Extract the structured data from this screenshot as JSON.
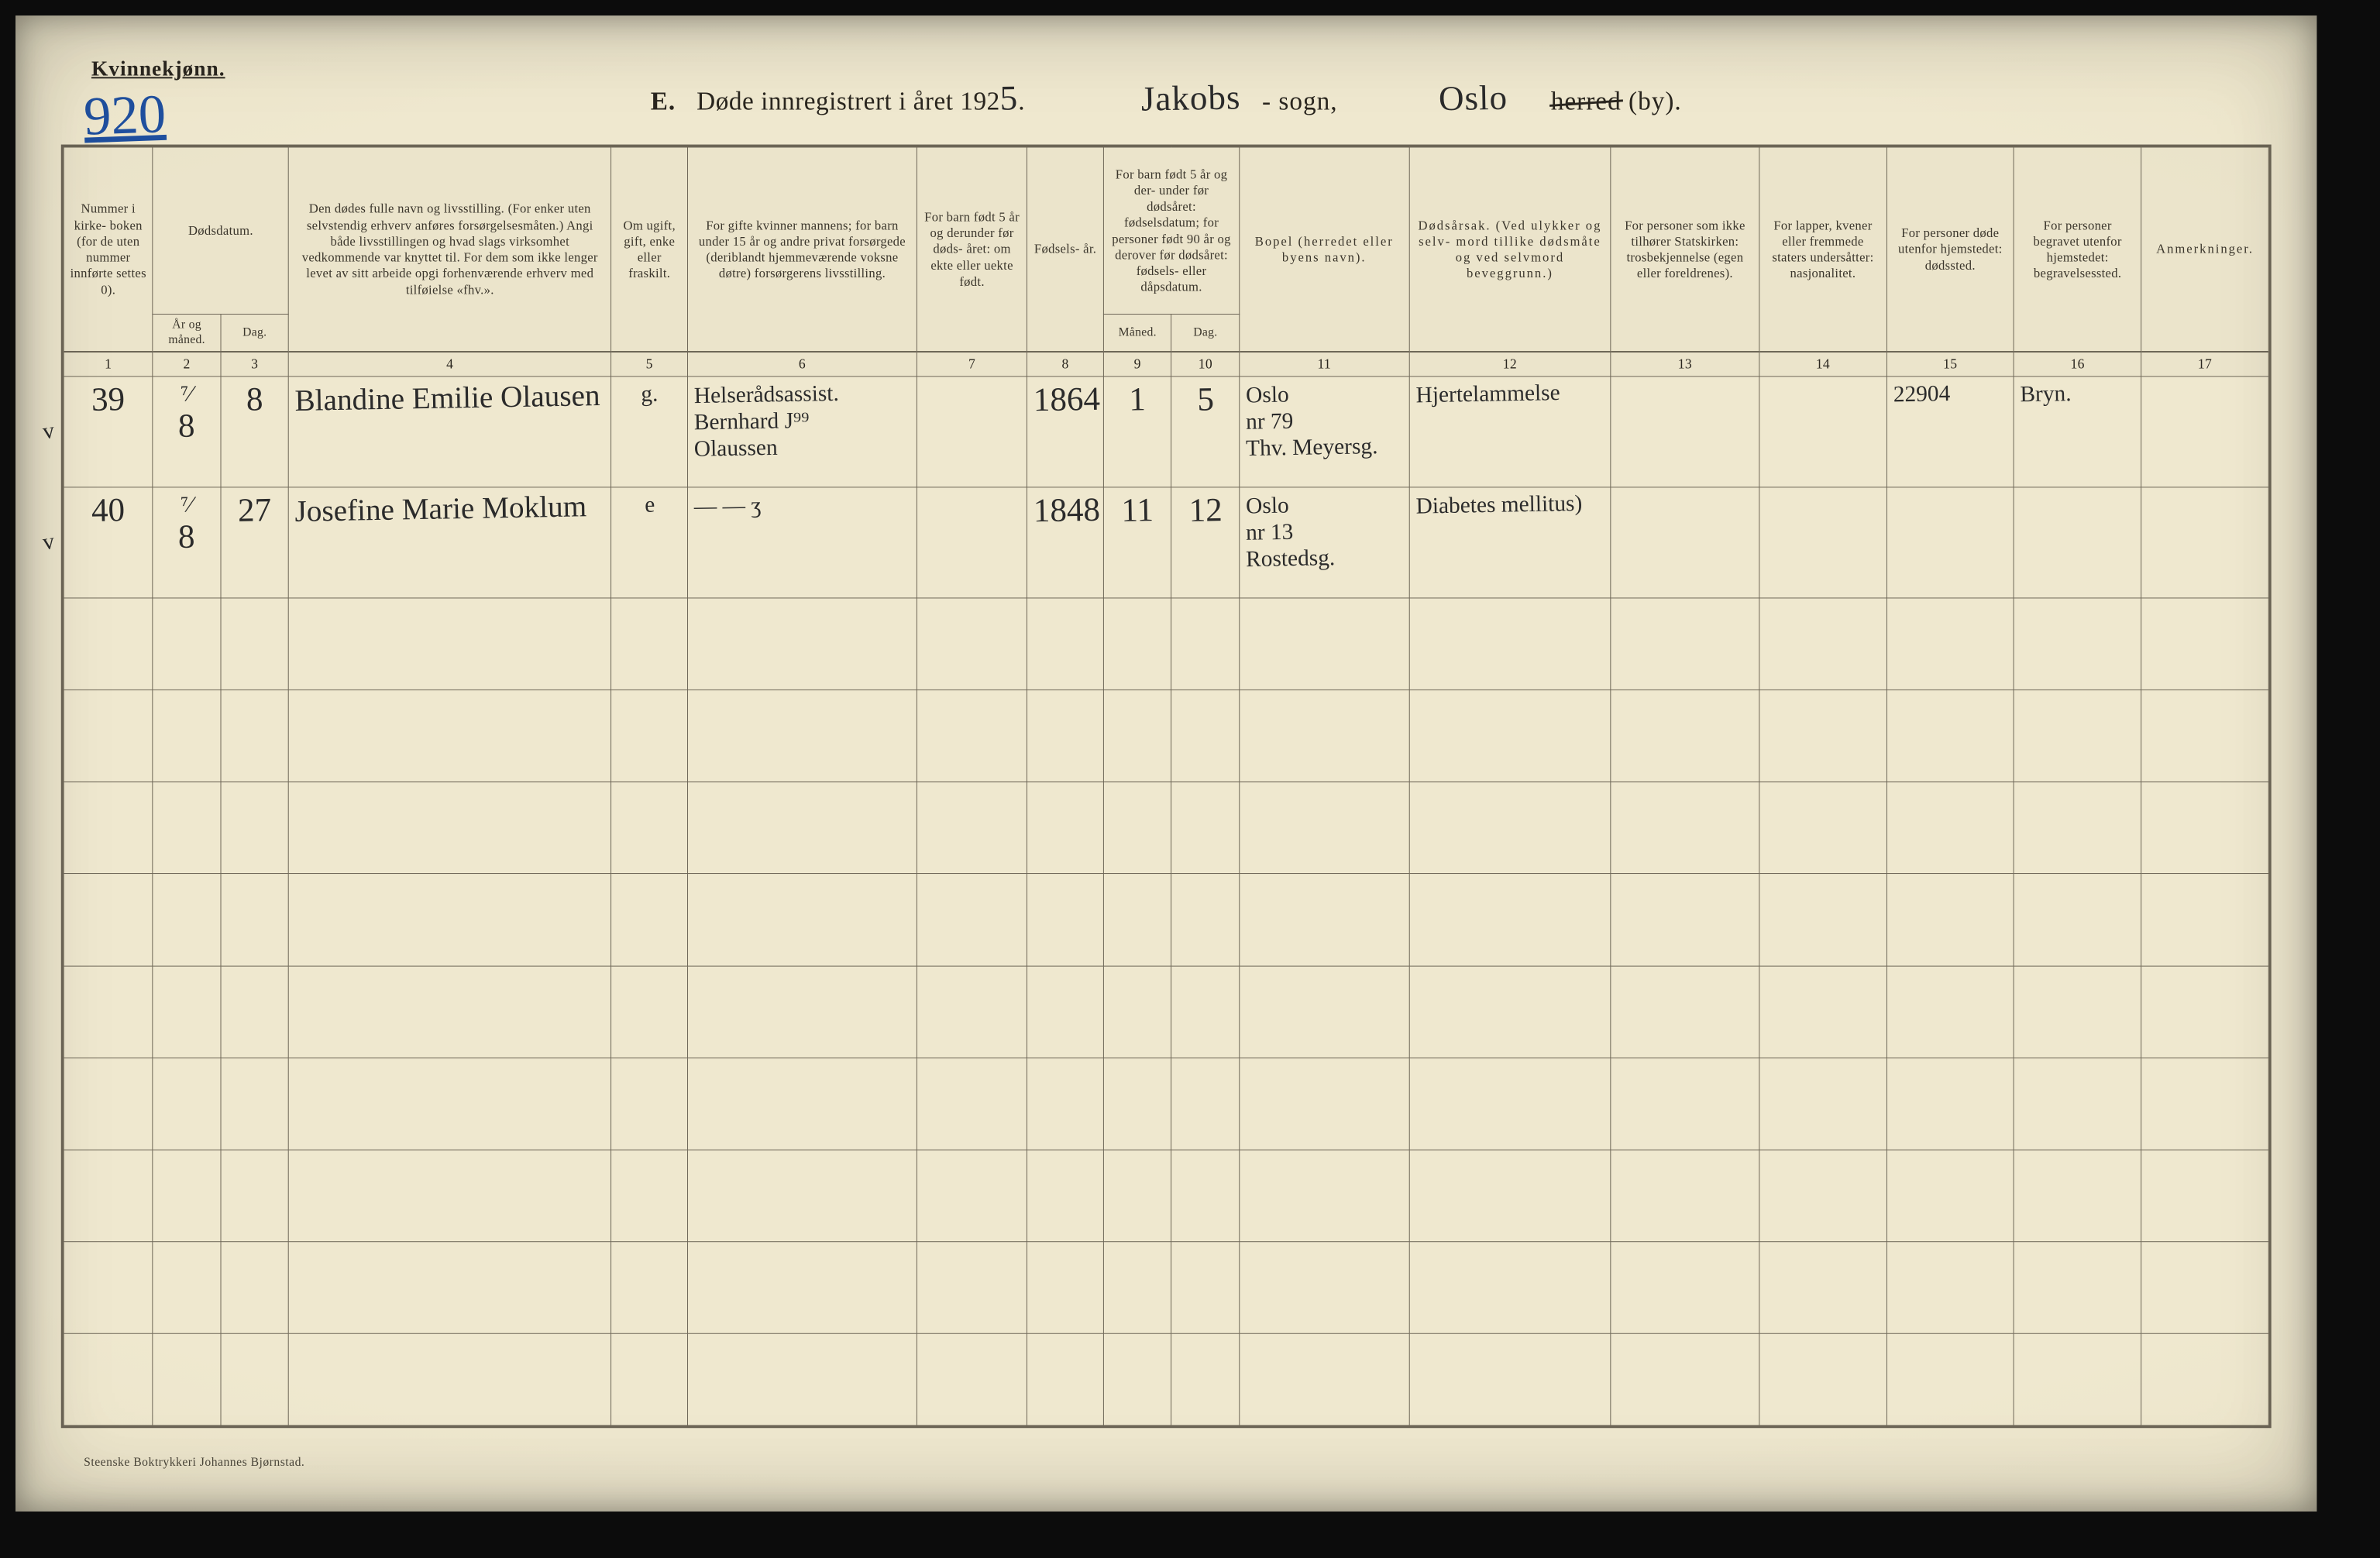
{
  "page": {
    "gender_heading": "Kvinnekjønn.",
    "page_number_handwritten": "920",
    "form_id": "E.",
    "title_base": "Døde innregistrert i året 192",
    "year_suffix_hw": "5",
    "title_tail_1": ".",
    "sogn_hw": "Jakobs",
    "sogn_label_suffix": "- sogn,",
    "by_hw": "Oslo",
    "herred_word": "herred",
    "by_suffix": "(by)."
  },
  "columns": {
    "c1": "Nummer i kirke- boken (for de uten nummer innførte settes 0).",
    "c2_group": "Dødsdatum.",
    "c2": "År og måned.",
    "c3": "Dag.",
    "c4": "Den dødes fulle navn og livsstilling. (For enker uten selvstendig erhverv anføres forsørgelsesmåten.) Angi både livsstillingen og hvad slags virksomhet vedkommende var knyttet til. For dem som ikke lenger levet av sitt arbeide opgi forhenværende erhverv med tilføielse «fhv.».",
    "c5": "Om ugift, gift, enke eller fraskilt.",
    "c6": "For gifte kvinner mannens; for barn under 15 år og andre privat forsørgede (deriblandt hjemmeværende voksne døtre) forsørgerens livsstilling.",
    "c7": "For barn født 5 år og derunder før døds- året: om ekte eller uekte født.",
    "c8": "Fødsels- år.",
    "c9_group": "For barn født 5 år og der- under før dødsåret: fødselsdatum; for personer født 90 år og derover før dødsåret: fødsels- eller dåpsdatum.",
    "c9": "Måned.",
    "c10": "Dag.",
    "c11": "Bopel (herredet eller byens navn).",
    "c12": "Dødsårsak. (Ved ulykker og selv- mord tillike dødsmåte og ved selvmord beveggrunn.)",
    "c13": "For personer som ikke tilhører Statskirken: trosbekjennelse (egen eller foreldrenes).",
    "c14": "For lapper, kvener eller fremmede staters undersåtter: nasjonalitet.",
    "c15": "For personer døde utenfor hjemstedet: dødssted.",
    "c16": "For personer begravet utenfor hjemstedet: begravelsessted.",
    "c17": "Anmerkninger."
  },
  "colnums": {
    "c1": "1",
    "c2": "2",
    "c3": "3",
    "c4": "4",
    "c5": "5",
    "c6": "6",
    "c7": "7",
    "c8": "8",
    "c9": "9",
    "c10": "10",
    "c11": "11",
    "c12": "12",
    "c13": "13",
    "c14": "14",
    "c15": "15",
    "c16": "16",
    "c17": "17"
  },
  "rows": [
    {
      "tick": "v",
      "num": "39",
      "mon": "8",
      "mon_note": "⁷⁄",
      "day": "8",
      "name": "Blandine Emilie Olausen",
      "marital": "g.",
      "provider_top": "Helserådsassist.",
      "provider_mid": "Bernhard J⁹⁹",
      "provider_bot": "Olaussen",
      "birth_year": "1864",
      "b_mon": "1",
      "b_day": "5",
      "residence_top": "Oslo",
      "residence_bot": "nr 79",
      "residence_street": "Thv. Meyersg.",
      "cause": "Hjertelammelse",
      "c15": "22904",
      "c16": "Bryn."
    },
    {
      "tick": "v",
      "num": "40",
      "mon": "8",
      "mon_note": "⁷⁄",
      "day": "27",
      "name": "Josefine Marie Moklum",
      "marital": "e",
      "provider_top": "",
      "provider_mid": "— — ʒ",
      "provider_bot": "",
      "birth_year": "1848",
      "b_mon": "11",
      "b_day": "12",
      "residence_top": "Oslo",
      "residence_bot": "nr 13",
      "residence_street": "Rostedsg.",
      "cause": "Diabetes mellitus)",
      "c15": "",
      "c16": ""
    }
  ],
  "printer": "Steenske Boktrykkeri Johannes Bjørnstad.",
  "style": {
    "paper": "#efe8cf",
    "paper_dark": "#e6dec0",
    "ink": "#2a261f",
    "rule": "#6b6455",
    "hand": "#2b2b2b",
    "blue_pencil": "#1f4f9e",
    "sheet_w": 3072,
    "sheet_h": 1971,
    "header_font_pt": 17,
    "body_font_pt": 20,
    "hand_font_pt": 40,
    "row_h_data": 145,
    "row_h_blank": 120,
    "blank_rows": 9,
    "col_widths_pct": [
      4.2,
      3.2,
      3.2,
      15.2,
      3.6,
      10.8,
      5.2,
      3.6,
      3.2,
      3.2,
      8.0,
      9.5,
      7.0,
      6.0,
      6.0,
      6.0,
      6.0
    ]
  }
}
